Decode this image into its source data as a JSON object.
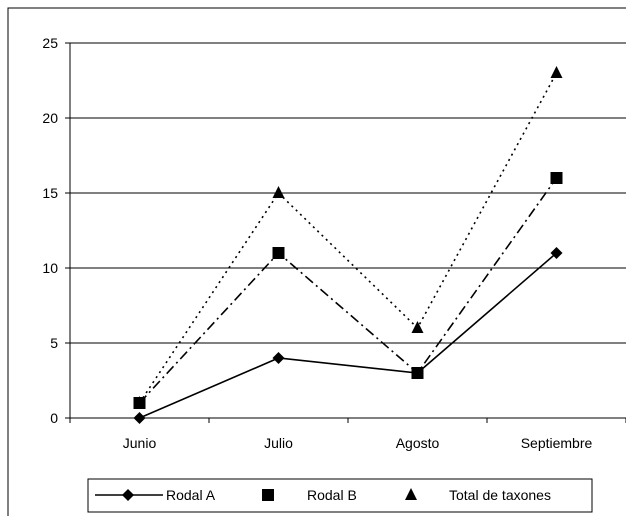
{
  "chart_data": {
    "type": "line",
    "title": "",
    "xlabel": "",
    "ylabel": "",
    "categories": [
      "Junio",
      "Julio",
      "Agosto",
      "Septiembre"
    ],
    "ylim": [
      0,
      25
    ],
    "yticks": [
      "0",
      "5",
      "10",
      "15",
      "20",
      "25"
    ],
    "grid": "horizontal",
    "legend_position": "bottom",
    "series": [
      {
        "name": "Rodal A",
        "values": [
          0,
          4,
          3,
          11
        ],
        "marker": "diamond",
        "line_style": "solid",
        "color": "#000000"
      },
      {
        "name": "Rodal B",
        "values": [
          1,
          11,
          3,
          16
        ],
        "marker": "square",
        "line_style": "dash-dot",
        "color": "#000000"
      },
      {
        "name": "Total de taxones",
        "values": [
          1,
          15,
          6,
          23
        ],
        "marker": "triangle",
        "line_style": "dotted",
        "color": "#000000"
      }
    ]
  }
}
